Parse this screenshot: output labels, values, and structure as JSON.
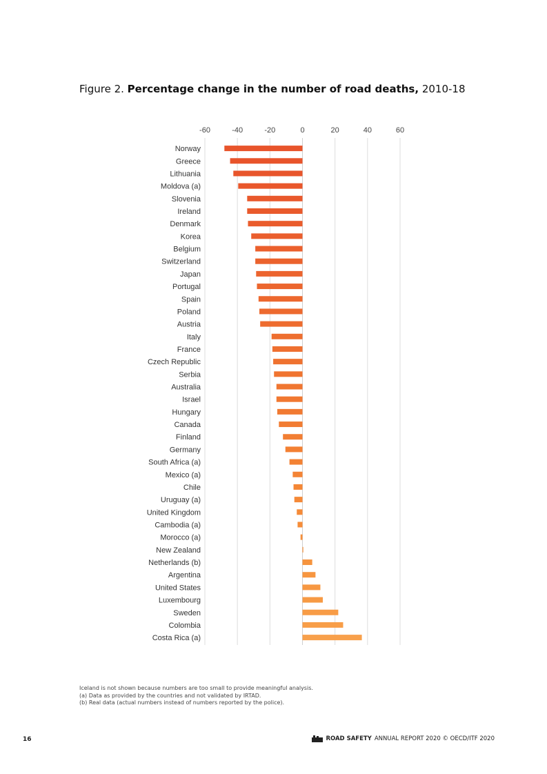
{
  "figure": {
    "prefix": "Figure 2.",
    "title_bold": "Percentage change in the number of road deaths,",
    "title_rest": "2010-18"
  },
  "chart_data": {
    "type": "bar",
    "orientation": "horizontal",
    "title": "Percentage change in the number of road deaths, 2010-18",
    "xlim": [
      -60,
      60
    ],
    "x_ticks": [
      "-60",
      "-40",
      "-20",
      "0",
      "20",
      "40",
      "60"
    ],
    "grid": true,
    "categories": [
      "Norway",
      "Greece",
      "Lithuania",
      "Moldova (a)",
      "Slovenia",
      "Ireland",
      "Denmark",
      "Korea",
      "Belgium",
      "Switzerland",
      "Japan",
      "Portugal",
      "Spain",
      "Poland",
      "Austria",
      "Italy",
      "France",
      "Czech Republic",
      "Serbia",
      "Australia",
      "Israel",
      "Hungary",
      "Canada",
      "Finland",
      "Germany",
      "South Africa (a)",
      "Mexico (a)",
      "Chile",
      "Uruguay (a)",
      "United Kingdom",
      "Cambodia (a)",
      "Morocco (a)",
      "New Zealand",
      "Netherlands (b)",
      "Argentina",
      "United States",
      "Luxembourg",
      "Sweden",
      "Colombia",
      "Costa Rica (a)"
    ],
    "values": [
      -48,
      -44.5,
      -42.5,
      -39.5,
      -34,
      -34,
      -33.5,
      -31.5,
      -29,
      -29,
      -28.5,
      -28,
      -27,
      -26.5,
      -26,
      -19,
      -18.5,
      -18,
      -17.5,
      -16,
      -16,
      -15.5,
      -14.5,
      -12,
      -10.5,
      -8,
      -6,
      -5.5,
      -5,
      -3.5,
      -3,
      -1.2,
      0.5,
      6,
      8,
      11,
      12.5,
      22,
      25,
      36.5
    ],
    "colors": [
      "#e8542b",
      "#e8542b",
      "#e8552b",
      "#e9572b",
      "#e9592c",
      "#e95a2c",
      "#ea5c2c",
      "#ea5e2d",
      "#eb602d",
      "#eb622d",
      "#ec642e",
      "#ec662e",
      "#ed682e",
      "#ed6a2f",
      "#ee6c2f",
      "#ee6e2f",
      "#ef7030",
      "#ef7230",
      "#f07430",
      "#f07631",
      "#f17831",
      "#f17a32",
      "#f27c32",
      "#f27e33",
      "#f38033",
      "#f38234",
      "#f48435",
      "#f48736",
      "#f58937",
      "#f58b38",
      "#f68d39",
      "#f68f3a",
      "#f6923c",
      "#f6943e",
      "#f79640",
      "#f79842",
      "#f79a44",
      "#f89c46",
      "#f89e48",
      "#f8a04b"
    ]
  },
  "notes": [
    "Iceland is not shown because numbers are too small to provide meaningful analysis.",
    "(a) Data as provided by the countries and not validated by IRTAD.",
    "(b) Real data (actual numbers instead of numbers reported by the police)."
  ],
  "footer": {
    "page_number": "16",
    "report_bold": "ROAD SAFETY",
    "report_rest": "ANNUAL REPORT 2020 © OECD/ITF 2020",
    "logo_icon": "itf-logo-icon"
  }
}
